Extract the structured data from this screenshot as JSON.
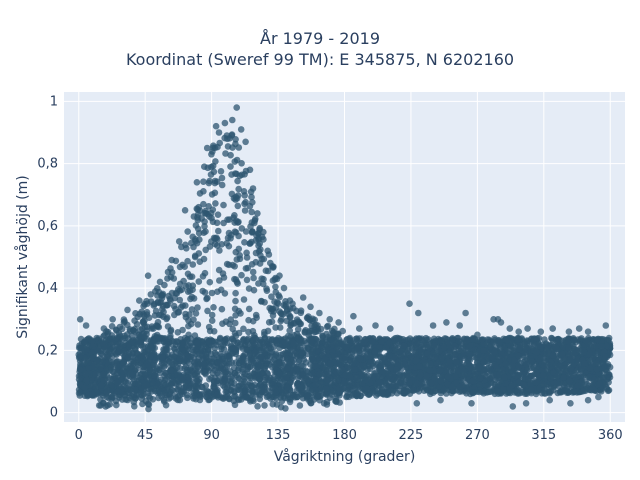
{
  "chart_data": {
    "type": "scatter",
    "title_lines": [
      "År 1979 - 2019",
      "Koordinat (Sweref 99 TM): E 345875, N 6202160"
    ],
    "xlabel": "Vågriktning (grader)",
    "ylabel": "Signifikant våghöjd (m)",
    "xlim": [
      -10,
      370
    ],
    "ylim": [
      -0.03,
      1.03
    ],
    "x_ticks": [
      0,
      45,
      90,
      135,
      180,
      225,
      270,
      315,
      360
    ],
    "x_tick_labels": [
      "0",
      "45",
      "90",
      "135",
      "180",
      "225",
      "270",
      "315",
      "360"
    ],
    "y_ticks": [
      0,
      0.2,
      0.4,
      0.6,
      0.8,
      1
    ],
    "y_tick_labels": [
      "0",
      "0,2",
      "0,4",
      "0,6",
      "0,8",
      "1"
    ],
    "grid": true,
    "legend": false,
    "colors": {
      "marker": "#2e5570",
      "plot_bg": "#e5ecf6",
      "grid": "#ffffff",
      "text": "#2a3f5f"
    },
    "series": [
      {
        "marker_opacity": 0.75,
        "envelope": [
          {
            "x": 0,
            "min": 0.02,
            "max": 0.24
          },
          {
            "x": 20,
            "min": 0.02,
            "max": 0.27
          },
          {
            "x": 40,
            "min": 0.01,
            "max": 0.33
          },
          {
            "x": 60,
            "min": 0.01,
            "max": 0.45
          },
          {
            "x": 75,
            "min": 0.01,
            "max": 0.6
          },
          {
            "x": 90,
            "min": 0.01,
            "max": 0.85
          },
          {
            "x": 100,
            "min": 0.01,
            "max": 0.92
          },
          {
            "x": 110,
            "min": 0.01,
            "max": 0.87
          },
          {
            "x": 120,
            "min": 0.01,
            "max": 0.65
          },
          {
            "x": 135,
            "min": 0.01,
            "max": 0.42
          },
          {
            "x": 150,
            "min": 0.02,
            "max": 0.33
          },
          {
            "x": 180,
            "min": 0.02,
            "max": 0.26
          },
          {
            "x": 225,
            "min": 0.03,
            "max": 0.24
          },
          {
            "x": 270,
            "min": 0.03,
            "max": 0.26
          },
          {
            "x": 315,
            "min": 0.03,
            "max": 0.25
          },
          {
            "x": 360,
            "min": 0.04,
            "max": 0.24
          }
        ],
        "outliers": [
          [
            1,
            0.3
          ],
          [
            5,
            0.28
          ],
          [
            17,
            0.27
          ],
          [
            23,
            0.3
          ],
          [
            33,
            0.33
          ],
          [
            41,
            0.36
          ],
          [
            47,
            0.44
          ],
          [
            55,
            0.42
          ],
          [
            63,
            0.49
          ],
          [
            68,
            0.55
          ],
          [
            72,
            0.65
          ],
          [
            78,
            0.63
          ],
          [
            80,
            0.74
          ],
          [
            85,
            0.79
          ],
          [
            87,
            0.85
          ],
          [
            93,
            0.92
          ],
          [
            95,
            0.9
          ],
          [
            99,
            0.93
          ],
          [
            104,
            0.94
          ],
          [
            107,
            0.98
          ],
          [
            110,
            0.91
          ],
          [
            113,
            0.87
          ],
          [
            116,
            0.78
          ],
          [
            118,
            0.72
          ],
          [
            121,
            0.64
          ],
          [
            125,
            0.58
          ],
          [
            128,
            0.52
          ],
          [
            131,
            0.47
          ],
          [
            136,
            0.44
          ],
          [
            139,
            0.4
          ],
          [
            143,
            0.36
          ],
          [
            152,
            0.37
          ],
          [
            157,
            0.34
          ],
          [
            163,
            0.32
          ],
          [
            170,
            0.3
          ],
          [
            176,
            0.29
          ],
          [
            186,
            0.31
          ],
          [
            190,
            0.27
          ],
          [
            201,
            0.28
          ],
          [
            211,
            0.27
          ],
          [
            224,
            0.35
          ],
          [
            230,
            0.32
          ],
          [
            240,
            0.28
          ],
          [
            249,
            0.29
          ],
          [
            258,
            0.28
          ],
          [
            262,
            0.32
          ],
          [
            270,
            0.25
          ],
          [
            281,
            0.3
          ],
          [
            284,
            0.3
          ],
          [
            286,
            0.29
          ],
          [
            292,
            0.27
          ],
          [
            298,
            0.26
          ],
          [
            304,
            0.27
          ],
          [
            313,
            0.26
          ],
          [
            321,
            0.27
          ],
          [
            332,
            0.26
          ],
          [
            339,
            0.27
          ],
          [
            345,
            0.26
          ],
          [
            357,
            0.28
          ],
          [
            229,
            0.03
          ],
          [
            245,
            0.04
          ],
          [
            266,
            0.03
          ],
          [
            294,
            0.02
          ],
          [
            303,
            0.03
          ],
          [
            319,
            0.04
          ],
          [
            333,
            0.03
          ],
          [
            345,
            0.04
          ],
          [
            352,
            0.05
          ]
        ]
      }
    ]
  }
}
